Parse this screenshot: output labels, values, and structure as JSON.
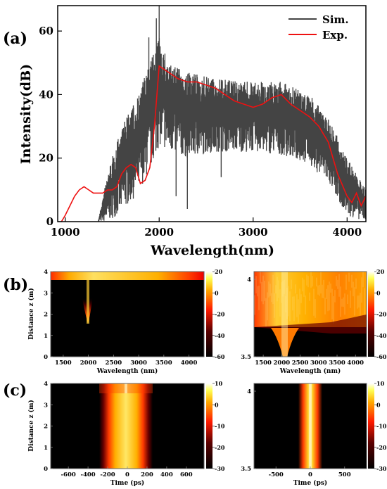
{
  "panels": {
    "a": {
      "label": "(a)"
    },
    "b": {
      "label": "(b)"
    },
    "c": {
      "label": "(c)"
    }
  },
  "chart_data": [
    {
      "id": "a",
      "type": "line",
      "xlabel": "Wavelength(nm)",
      "ylabel": "Intensity(dB)",
      "xlim": [
        920,
        4200
      ],
      "ylim": [
        0,
        68
      ],
      "xticks": [
        1000,
        2000,
        3000,
        4000
      ],
      "yticks": [
        0,
        20,
        40,
        60
      ],
      "legend_position": "top-right",
      "series": [
        {
          "name": "Sim.",
          "color": "#444444",
          "style": "noisy band",
          "envelope_x": [
            1350,
            1450,
            1600,
            1750,
            1900,
            2000,
            2100,
            2300,
            2600,
            3000,
            3300,
            3600,
            3800,
            4000,
            4200
          ],
          "upper": [
            0,
            15,
            30,
            38,
            50,
            58,
            50,
            47,
            45,
            44,
            44,
            40,
            33,
            20,
            10
          ],
          "lower": [
            0,
            0,
            3,
            8,
            16,
            24,
            22,
            20,
            22,
            22,
            21,
            18,
            12,
            2,
            0
          ],
          "spikes": [
            [
              2000,
              68
            ],
            [
              1970,
              64
            ],
            [
              1890,
              58
            ],
            [
              2300,
              4
            ],
            [
              2660,
              14
            ],
            [
              2180,
              8
            ]
          ]
        },
        {
          "name": "Exp.",
          "color": "#ee1111",
          "x": [
            960,
            1000,
            1050,
            1100,
            1150,
            1200,
            1250,
            1300,
            1350,
            1400,
            1450,
            1500,
            1550,
            1600,
            1650,
            1700,
            1750,
            1800,
            1850,
            1900,
            1950,
            2000,
            2050,
            2100,
            2200,
            2300,
            2400,
            2500,
            2600,
            2700,
            2800,
            2900,
            3000,
            3100,
            3200,
            3300,
            3400,
            3500,
            3600,
            3700,
            3800,
            3900,
            4000,
            4050,
            4100,
            4150,
            4200
          ],
          "y": [
            0,
            2,
            5,
            8,
            10,
            11,
            10,
            9,
            9,
            9,
            10,
            10,
            11,
            15,
            17,
            18,
            17,
            12,
            13,
            17,
            30,
            49,
            48,
            47,
            45,
            44,
            44,
            43,
            42,
            40,
            38,
            37,
            36,
            37,
            39,
            40,
            37,
            35,
            33,
            30,
            25,
            15,
            8,
            6,
            9,
            5,
            8
          ]
        }
      ]
    },
    {
      "id": "b-left",
      "type": "heatmap",
      "xlabel": "Wavelength (nm)",
      "ylabel": "Distance z (m)",
      "xlim": [
        1250,
        4300
      ],
      "ylim": [
        0,
        4
      ],
      "xticks": [
        1500,
        2000,
        2500,
        3000,
        3500,
        4000
      ],
      "yticks": [
        0,
        1,
        2,
        3,
        4
      ],
      "colorbar": {
        "min": -60,
        "max": 20,
        "ticks": [
          20,
          0,
          -20,
          -40,
          -60
        ]
      }
    },
    {
      "id": "b-right",
      "type": "heatmap",
      "xlabel": "Wavelength (nm)",
      "ylabel": "",
      "xlim": [
        1250,
        4300
      ],
      "ylim": [
        3.5,
        4.05
      ],
      "xticks": [
        1500,
        2000,
        2500,
        3000,
        3500,
        4000
      ],
      "yticks": [
        3.5,
        4
      ],
      "colorbar": {
        "min": -60,
        "max": 20,
        "ticks": [
          20,
          0,
          -20,
          -40,
          -60
        ]
      }
    },
    {
      "id": "c-left",
      "type": "heatmap",
      "xlabel": "Time (ps)",
      "ylabel": "Distance z (m)",
      "xlim": [
        -780,
        780
      ],
      "ylim": [
        0,
        4
      ],
      "xticks": [
        -600,
        -400,
        -200,
        0,
        200,
        400,
        600
      ],
      "yticks": [
        0,
        1,
        2,
        3,
        4
      ],
      "colorbar": {
        "min": -30,
        "max": 10,
        "ticks": [
          10,
          0,
          -10,
          -20,
          -30
        ]
      }
    },
    {
      "id": "c-right",
      "type": "heatmap",
      "xlabel": "Time (ps)",
      "ylabel": "",
      "xlim": [
        -820,
        820
      ],
      "ylim": [
        3.5,
        4.05
      ],
      "xticks": [
        -500,
        0,
        500
      ],
      "yticks": [
        3.5,
        4
      ],
      "colorbar": {
        "min": -30,
        "max": 10,
        "ticks": [
          10,
          0,
          -10,
          -20,
          -30
        ]
      }
    }
  ]
}
